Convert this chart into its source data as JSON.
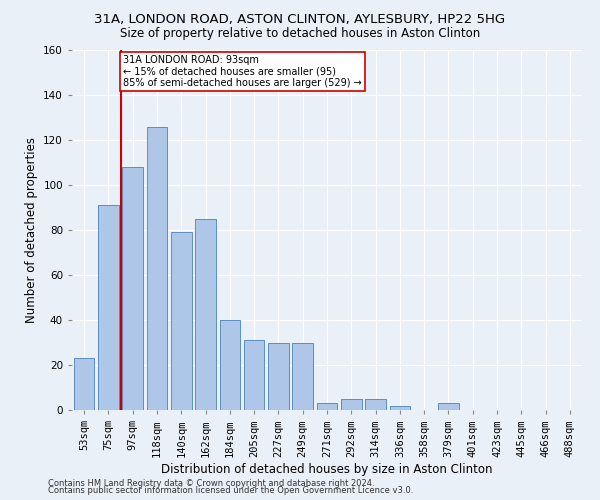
{
  "title_line1": "31A, LONDON ROAD, ASTON CLINTON, AYLESBURY, HP22 5HG",
  "title_line2": "Size of property relative to detached houses in Aston Clinton",
  "xlabel": "Distribution of detached houses by size in Aston Clinton",
  "ylabel": "Number of detached properties",
  "categories": [
    "53sqm",
    "75sqm",
    "97sqm",
    "118sqm",
    "140sqm",
    "162sqm",
    "184sqm",
    "205sqm",
    "227sqm",
    "249sqm",
    "271sqm",
    "292sqm",
    "314sqm",
    "336sqm",
    "358sqm",
    "379sqm",
    "401sqm",
    "423sqm",
    "445sqm",
    "466sqm",
    "488sqm"
  ],
  "values": [
    23,
    91,
    108,
    126,
    79,
    85,
    40,
    31,
    30,
    30,
    3,
    5,
    5,
    2,
    0,
    3,
    0,
    0,
    0,
    0,
    0
  ],
  "bar_color": "#aec6e8",
  "bar_edge_color": "#5a8fc0",
  "vline_color": "#cc0000",
  "annotation_text": "31A LONDON ROAD: 93sqm\n← 15% of detached houses are smaller (95)\n85% of semi-detached houses are larger (529) →",
  "annotation_box_color": "#ffffff",
  "annotation_box_edge": "#cc0000",
  "ylim": [
    0,
    160
  ],
  "yticks": [
    0,
    20,
    40,
    60,
    80,
    100,
    120,
    140,
    160
  ],
  "bg_color": "#eaf0f8",
  "plot_bg_color": "#eaf0f8",
  "footer_line1": "Contains HM Land Registry data © Crown copyright and database right 2024.",
  "footer_line2": "Contains public sector information licensed under the Open Government Licence v3.0.",
  "title_fontsize": 9.5,
  "subtitle_fontsize": 8.5,
  "tick_fontsize": 7.5,
  "label_fontsize": 8.5,
  "footer_fontsize": 6.0
}
